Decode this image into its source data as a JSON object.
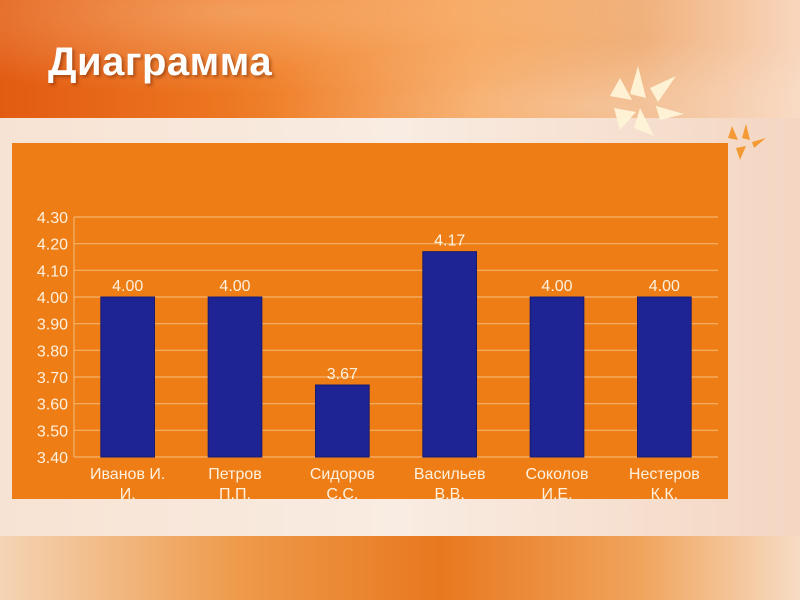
{
  "slide": {
    "title": "Диаграмма"
  },
  "colors": {
    "plot_background": "#ee7d15",
    "bar_fill": "#1f2494",
    "gridline": "#f4b36a",
    "text": "#fff1e0"
  },
  "chart_data": {
    "type": "bar",
    "title": "",
    "xlabel": "",
    "ylabel": "",
    "categories": [
      [
        "Иванов И.",
        "И."
      ],
      [
        "Петров",
        "П.П."
      ],
      [
        "Сидоров",
        "С.С."
      ],
      [
        "Васильев",
        "В.В."
      ],
      [
        "Соколов",
        "И.Е."
      ],
      [
        "Нестеров",
        "К.К."
      ]
    ],
    "values": [
      4.0,
      4.0,
      3.67,
      4.17,
      4.0,
      4.0
    ],
    "data_labels": [
      "4.00",
      "4.00",
      "3.67",
      "4.17",
      "4.00",
      "4.00"
    ],
    "ylim": [
      3.4,
      4.3
    ],
    "yticks": [
      3.4,
      3.5,
      3.6,
      3.7,
      3.8,
      3.9,
      4.0,
      4.1,
      4.2,
      4.3
    ],
    "ytick_labels": [
      "3.40",
      "3.50",
      "3.60",
      "3.70",
      "3.80",
      "3.90",
      "4.00",
      "4.10",
      "4.20",
      "4.30"
    ],
    "grid": true,
    "legend": "none"
  }
}
